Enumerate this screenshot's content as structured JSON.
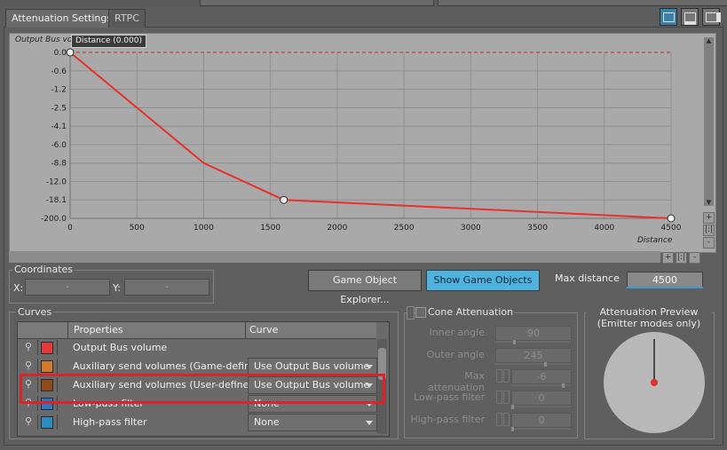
{
  "tabs": [
    {
      "label": "Attenuation Settings",
      "active": true
    },
    {
      "label": "RTPC",
      "active": false
    }
  ],
  "view_buttons": [
    {
      "icon": "single-pane-icon",
      "active": true
    },
    {
      "icon": "split-horizontal-icon",
      "active": false
    },
    {
      "icon": "split-vertical-icon",
      "active": false
    }
  ],
  "graph": {
    "y_title": "Output Bus vo",
    "tooltip": "Distance (0.000)",
    "x_title": "Distance",
    "y_ticks": [
      "0.0",
      "-0.6",
      "-1.2",
      "-2.5",
      "-4.1",
      "-6.0",
      "-8.8",
      "-12.0",
      "-18.1",
      "-200.0"
    ],
    "x_ticks": [
      "0",
      "500",
      "1000",
      "1500",
      "2000",
      "2500",
      "3000",
      "3500",
      "4000",
      "4500"
    ],
    "curve_color": "#e8302d",
    "control_points": [
      {
        "distance": 0,
        "value": "0.0"
      },
      {
        "distance": 1600,
        "value": "-18.1"
      },
      {
        "distance": 4500,
        "value": "-200.0"
      }
    ],
    "zoom_vertical": [
      "+",
      "|:|",
      "-"
    ],
    "zoom_horizontal": [
      "+",
      "|:|",
      "-"
    ]
  },
  "coordinates": {
    "title": "Coordinates",
    "x_label": "X:",
    "x_value": "-",
    "y_label": "Y:",
    "y_value": "-"
  },
  "buttons": {
    "game_object_explorer": "Game Object Explorer...",
    "show_game_objects": "Show Game Objects"
  },
  "max_distance": {
    "label": "Max distance",
    "value": "4500"
  },
  "curves": {
    "title": "Curves",
    "headers": [
      "Properties",
      "Curve"
    ],
    "rows": [
      {
        "label": "Output Bus volume",
        "color": "#e03b36",
        "curve": ""
      },
      {
        "label": "Auxiliary send volumes (Game-defined)",
        "color": "#d17a2a",
        "curve": "Use Output Bus volume"
      },
      {
        "label": "Auxiliary send volumes (User-defined)",
        "color": "#8f4a1a",
        "curve": "Use Output Bus volume",
        "highlighted": true
      },
      {
        "label": "Low-pass filter",
        "color": "#2a77c2",
        "curve": "None"
      },
      {
        "label": "High-pass filter",
        "color": "#2b8cc0",
        "curve": "None"
      }
    ]
  },
  "cone": {
    "title": "Cone Attenuation",
    "fields": [
      {
        "label": "Inner angle",
        "value": "90",
        "fill": 0.25
      },
      {
        "label": "Outer angle",
        "value": "245",
        "fill": 0.68
      },
      {
        "label": "Max attenuation",
        "value": "-6",
        "fill": 0.9
      },
      {
        "label": "Low-pass filter",
        "value": "0",
        "fill": 0.0
      },
      {
        "label": "High-pass filter",
        "value": "0",
        "fill": 0.0
      }
    ]
  },
  "preview": {
    "title": "Attenuation Preview",
    "subtitle": "(Emitter modes only)",
    "dot_color": "#e0302a"
  },
  "chart_data": {
    "type": "line",
    "title": "",
    "xlabel": "Distance",
    "ylabel": "Output Bus vo",
    "xlim": [
      0,
      4500
    ],
    "x_tick_labels": [
      "0",
      "500",
      "1000",
      "1500",
      "2000",
      "2500",
      "3000",
      "3500",
      "4000",
      "4500"
    ],
    "y_tick_labels": [
      "0.0",
      "-0.6",
      "-1.2",
      "-2.5",
      "-4.1",
      "-6.0",
      "-8.8",
      "-12.0",
      "-18.1",
      "-200.0"
    ],
    "series": [
      {
        "x": [
          0,
          500,
          1000,
          1600,
          4500
        ],
        "y": [
          0.0,
          -2.5,
          -8.8,
          -18.1,
          -200.0
        ]
      }
    ]
  }
}
